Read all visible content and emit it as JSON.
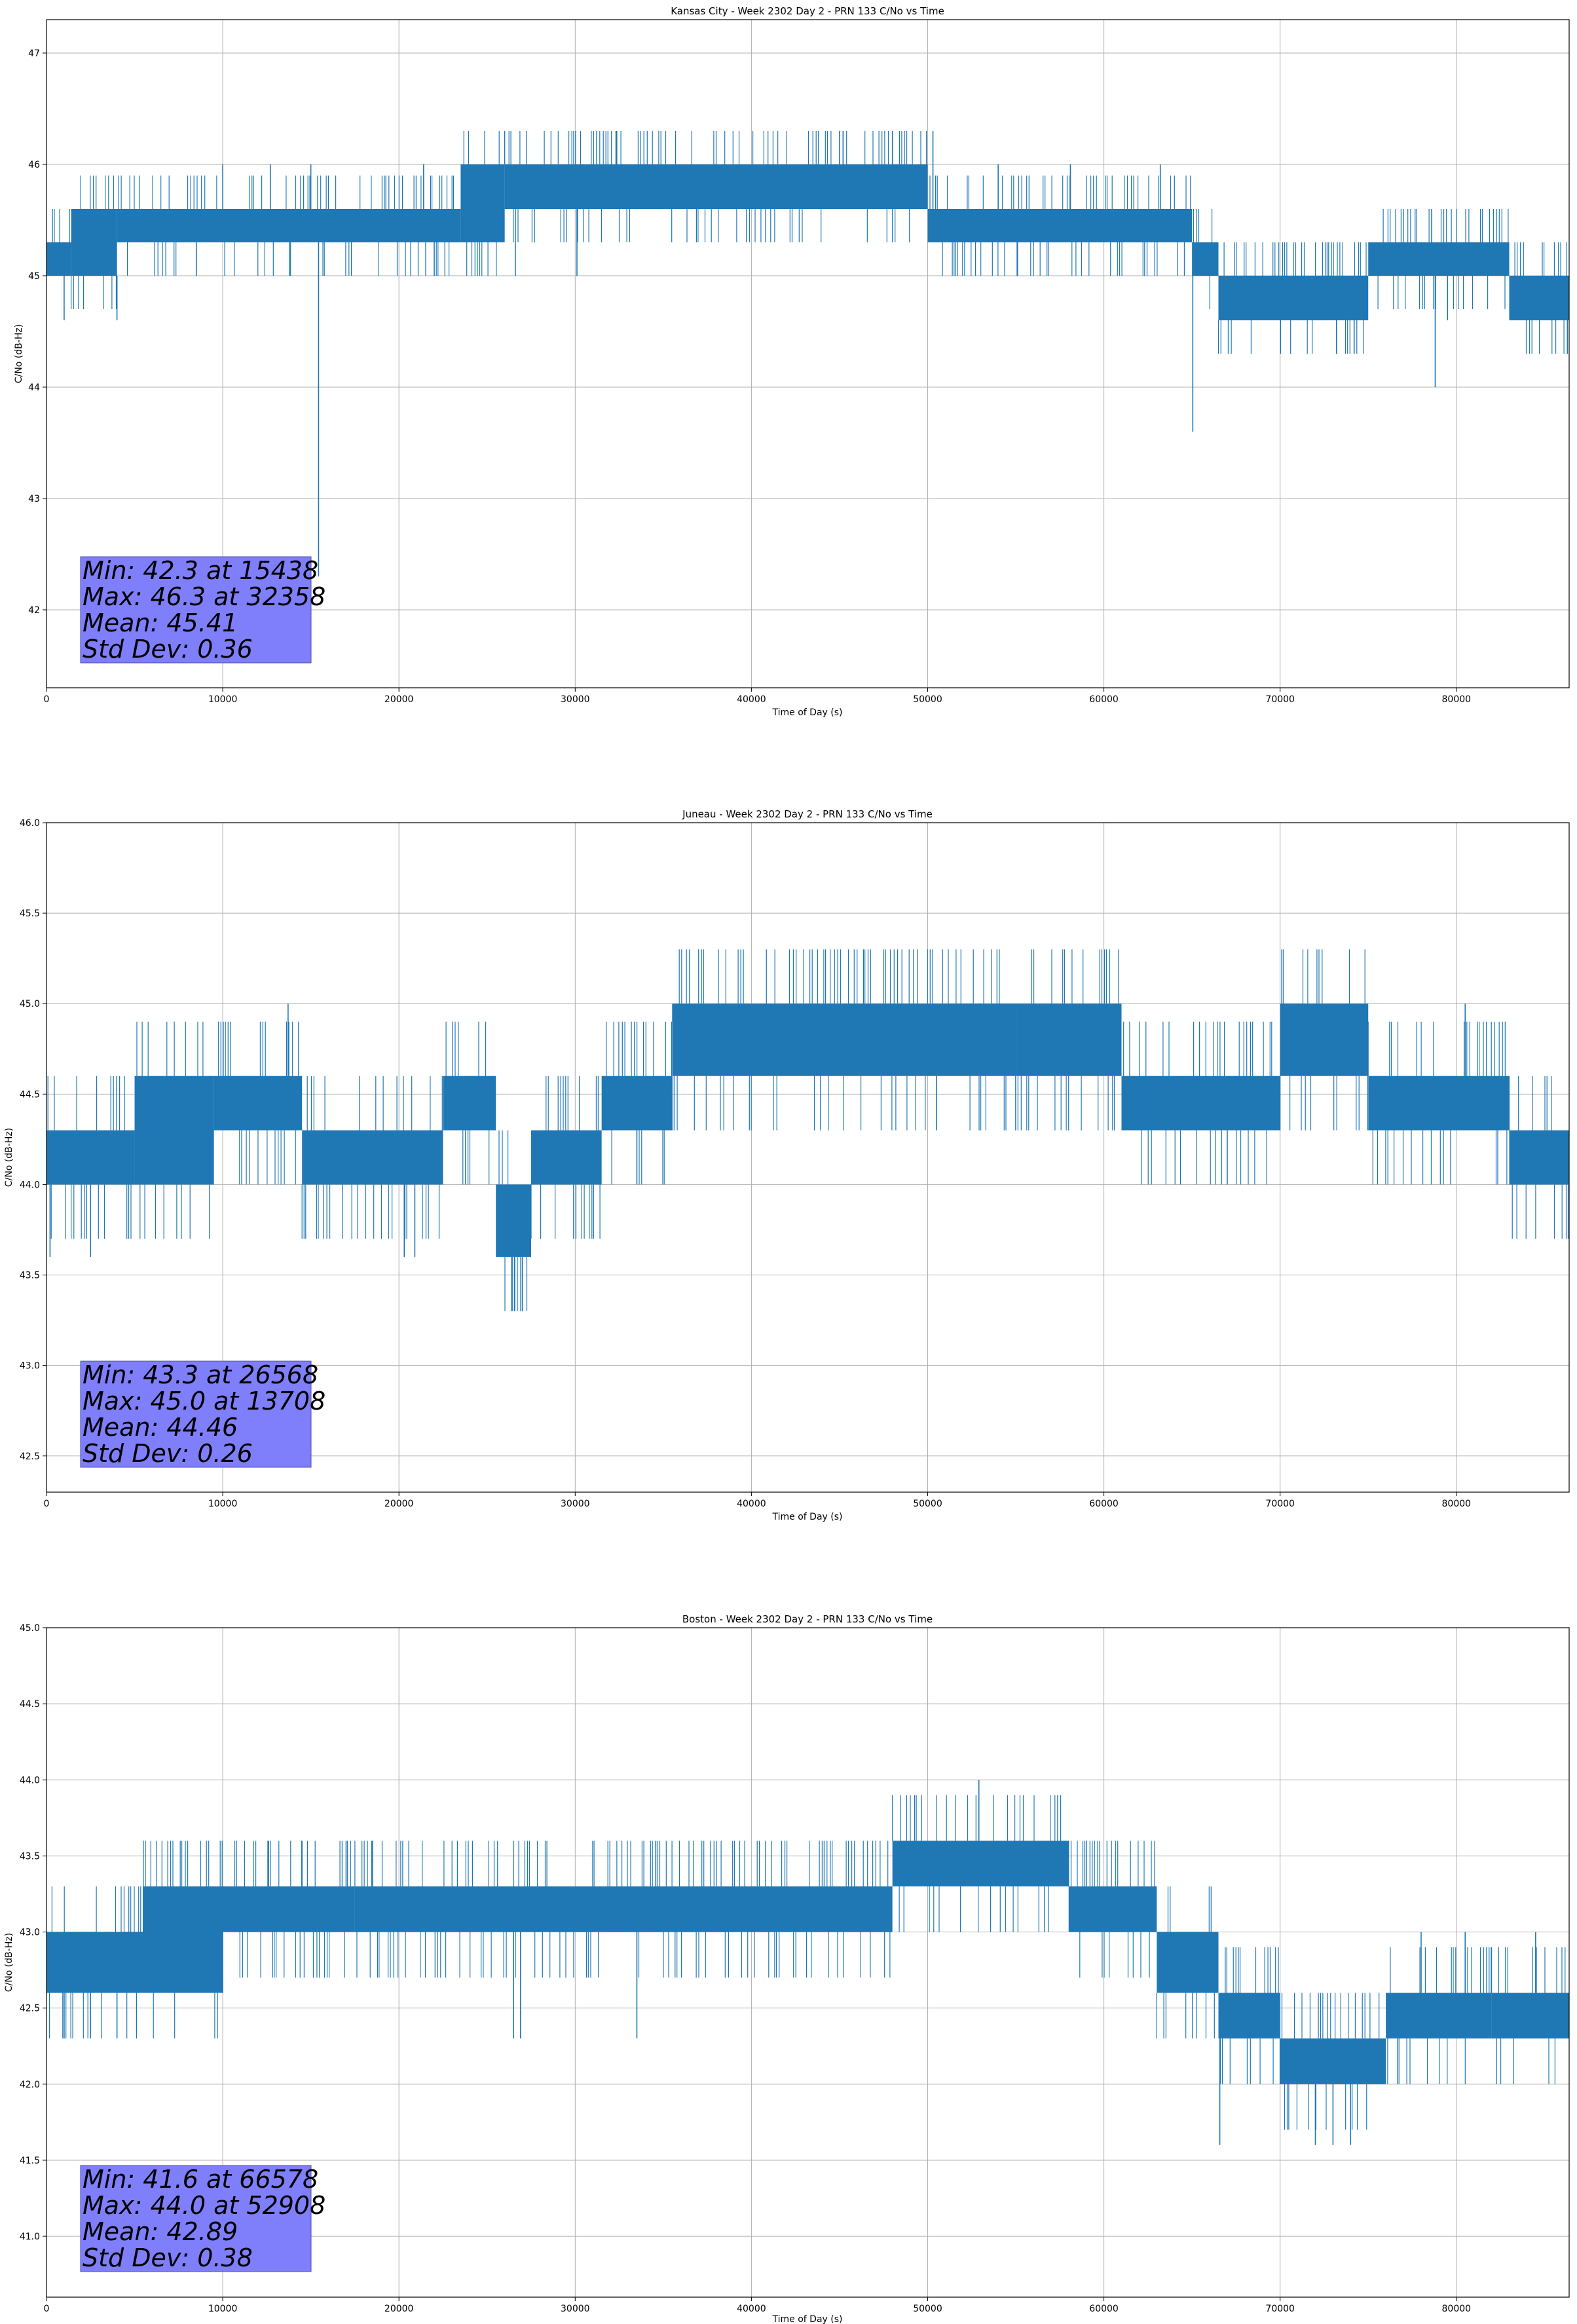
{
  "chart_data": [
    {
      "type": "line",
      "title": "Kansas City - Week 2302 Day 2 - PRN 133 C/No vs Time",
      "xlabel": "Time of Day (s)",
      "ylabel": "C/No (dB-Hz)",
      "xlim": [
        0,
        86400
      ],
      "ylim": [
        41.3,
        47.3
      ],
      "xticks": [
        0,
        10000,
        20000,
        30000,
        40000,
        50000,
        60000,
        70000,
        80000
      ],
      "yticks": [
        42,
        43,
        44,
        45,
        46,
        47
      ],
      "ytick_decimals": 0,
      "grid": true,
      "color": "#1f77b4",
      "stats": [
        "Min: 42.3 at 15438",
        "Max: 46.3 at 32358",
        "Mean: 45.41",
        "Std Dev: 0.36"
      ],
      "segments": [
        {
          "x": [
            0,
            1400
          ],
          "band": [
            45.0,
            45.3
          ]
        },
        {
          "x": [
            1400,
            4000
          ],
          "band": [
            45.0,
            45.6
          ]
        },
        {
          "x": [
            4000,
            23500
          ],
          "band": [
            45.3,
            45.6
          ]
        },
        {
          "x": [
            23500,
            26000
          ],
          "band": [
            45.3,
            46.0
          ]
        },
        {
          "x": [
            26000,
            50000
          ],
          "band": [
            45.6,
            46.0
          ]
        },
        {
          "x": [
            50000,
            65000
          ],
          "band": [
            45.3,
            45.6
          ]
        },
        {
          "x": [
            65000,
            66500
          ],
          "band": [
            45.0,
            45.3
          ]
        },
        {
          "x": [
            66500,
            75000
          ],
          "band": [
            44.6,
            45.0
          ]
        },
        {
          "x": [
            75000,
            83000
          ],
          "band": [
            45.0,
            45.3
          ]
        },
        {
          "x": [
            83000,
            86400
          ],
          "band": [
            44.6,
            45.0
          ]
        }
      ],
      "spikes": [
        [
          1000,
          44.6
        ],
        [
          4000,
          44.6
        ],
        [
          8500,
          45.0
        ],
        [
          10000,
          46.0
        ],
        [
          12700,
          46.0
        ],
        [
          13800,
          45.0
        ],
        [
          15000,
          46.0
        ],
        [
          15438,
          42.3
        ],
        [
          21400,
          46.0
        ],
        [
          22000,
          45.0
        ],
        [
          26600,
          45.0
        ],
        [
          30100,
          45.0
        ],
        [
          32358,
          46.3
        ],
        [
          45000,
          46.3
        ],
        [
          45200,
          46.3
        ],
        [
          48000,
          46.3
        ],
        [
          50300,
          46.3
        ],
        [
          54000,
          46.0
        ],
        [
          55100,
          45.0
        ],
        [
          58100,
          46.0
        ],
        [
          63200,
          46.0
        ],
        [
          65045,
          43.6
        ],
        [
          73200,
          44.3
        ],
        [
          74200,
          44.3
        ],
        [
          78600,
          45.6
        ],
        [
          78800,
          44.0
        ],
        [
          79500,
          44.6
        ],
        [
          86300,
          44.3
        ]
      ]
    },
    {
      "type": "line",
      "title": "Juneau - Week 2302 Day 2 - PRN 133 C/No vs Time",
      "xlabel": "Time of Day (s)",
      "ylabel": "C/No (dB-Hz)",
      "xlim": [
        0,
        86400
      ],
      "ylim": [
        42.3,
        46.0
      ],
      "xticks": [
        0,
        10000,
        20000,
        30000,
        40000,
        50000,
        60000,
        70000,
        80000
      ],
      "yticks": [
        42.5,
        43.0,
        43.5,
        44.0,
        44.5,
        45.0,
        45.5,
        46.0
      ],
      "ytick_decimals": 1,
      "grid": true,
      "color": "#1f77b4",
      "stats": [
        "Min: 43.3 at 26568",
        "Max: 45.0 at 13708",
        "Mean: 44.46",
        "Std Dev: 0.26"
      ],
      "segments": [
        {
          "x": [
            0,
            5000
          ],
          "band": [
            44.0,
            44.3
          ]
        },
        {
          "x": [
            5000,
            9500
          ],
          "band": [
            44.0,
            44.6
          ]
        },
        {
          "x": [
            9500,
            14500
          ],
          "band": [
            44.3,
            44.6
          ]
        },
        {
          "x": [
            14500,
            22500
          ],
          "band": [
            44.0,
            44.3
          ]
        },
        {
          "x": [
            22500,
            25500
          ],
          "band": [
            44.3,
            44.6
          ]
        },
        {
          "x": [
            25500,
            27500
          ],
          "band": [
            43.6,
            44.0
          ]
        },
        {
          "x": [
            27500,
            31500
          ],
          "band": [
            44.0,
            44.3
          ]
        },
        {
          "x": [
            31500,
            35500
          ],
          "band": [
            44.3,
            44.6
          ]
        },
        {
          "x": [
            35500,
            44000
          ],
          "band": [
            44.6,
            45.0
          ]
        },
        {
          "x": [
            44000,
            55000
          ],
          "band": [
            44.6,
            45.0
          ]
        },
        {
          "x": [
            55000,
            61000
          ],
          "band": [
            44.6,
            45.0
          ]
        },
        {
          "x": [
            61000,
            70000
          ],
          "band": [
            44.3,
            44.6
          ]
        },
        {
          "x": [
            70000,
            75000
          ],
          "band": [
            44.6,
            45.0
          ]
        },
        {
          "x": [
            75000,
            83000
          ],
          "band": [
            44.3,
            44.6
          ]
        },
        {
          "x": [
            83000,
            86400
          ],
          "band": [
            44.0,
            44.3
          ]
        }
      ],
      "spikes": [
        [
          200,
          43.6
        ],
        [
          2500,
          43.6
        ],
        [
          13708,
          45.0
        ],
        [
          20300,
          43.6
        ],
        [
          20900,
          43.6
        ],
        [
          26400,
          43.3
        ],
        [
          26568,
          43.3
        ],
        [
          27000,
          43.3
        ],
        [
          33500,
          44.0
        ],
        [
          37000,
          45.0
        ],
        [
          50500,
          44.3
        ],
        [
          67000,
          44.0
        ],
        [
          71500,
          45.0
        ],
        [
          80500,
          45.0
        ]
      ]
    },
    {
      "type": "line",
      "title": "Boston - Week 2302 Day 2 - PRN 133 C/No vs Time",
      "xlabel": "Time of Day (s)",
      "ylabel": "C/No (dB-Hz)",
      "xlim": [
        0,
        86400
      ],
      "ylim": [
        40.6,
        45.0
      ],
      "xticks": [
        0,
        10000,
        20000,
        30000,
        40000,
        50000,
        60000,
        70000,
        80000
      ],
      "yticks": [
        41.0,
        41.5,
        42.0,
        42.5,
        43.0,
        43.5,
        44.0,
        44.5,
        45.0
      ],
      "ytick_decimals": 1,
      "grid": true,
      "color": "#1f77b4",
      "stats": [
        "Min: 41.6 at 66578",
        "Max: 44.0 at 52908",
        "Mean: 42.89",
        "Std Dev: 0.38"
      ],
      "segments": [
        {
          "x": [
            0,
            5500
          ],
          "band": [
            42.6,
            43.0
          ]
        },
        {
          "x": [
            5500,
            10000
          ],
          "band": [
            42.6,
            43.3
          ]
        },
        {
          "x": [
            10000,
            17500
          ],
          "band": [
            43.0,
            43.3
          ]
        },
        {
          "x": [
            17500,
            48000
          ],
          "band": [
            43.0,
            43.3
          ]
        },
        {
          "x": [
            48000,
            58000
          ],
          "band": [
            43.3,
            43.6
          ]
        },
        {
          "x": [
            58000,
            63000
          ],
          "band": [
            43.0,
            43.3
          ]
        },
        {
          "x": [
            63000,
            66500
          ],
          "band": [
            42.6,
            43.0
          ]
        },
        {
          "x": [
            66500,
            70000
          ],
          "band": [
            42.3,
            42.6
          ]
        },
        {
          "x": [
            70000,
            76000
          ],
          "band": [
            42.0,
            42.3
          ]
        },
        {
          "x": [
            76000,
            82000
          ],
          "band": [
            42.3,
            42.6
          ]
        },
        {
          "x": [
            82000,
            86400
          ],
          "band": [
            42.3,
            42.6
          ]
        }
      ],
      "spikes": [
        [
          1000,
          42.3
        ],
        [
          2500,
          42.3
        ],
        [
          4000,
          42.3
        ],
        [
          10000,
          42.6
        ],
        [
          12600,
          43.6
        ],
        [
          14500,
          43.6
        ],
        [
          17000,
          43.6
        ],
        [
          18500,
          43.6
        ],
        [
          26500,
          42.3
        ],
        [
          26900,
          42.3
        ],
        [
          33500,
          42.3
        ],
        [
          52908,
          44.0
        ],
        [
          59000,
          43.6
        ],
        [
          66578,
          41.6
        ],
        [
          72000,
          41.6
        ],
        [
          73000,
          41.6
        ],
        [
          74000,
          41.6
        ],
        [
          78000,
          43.0
        ],
        [
          80500,
          43.0
        ],
        [
          84500,
          43.0
        ]
      ]
    }
  ]
}
